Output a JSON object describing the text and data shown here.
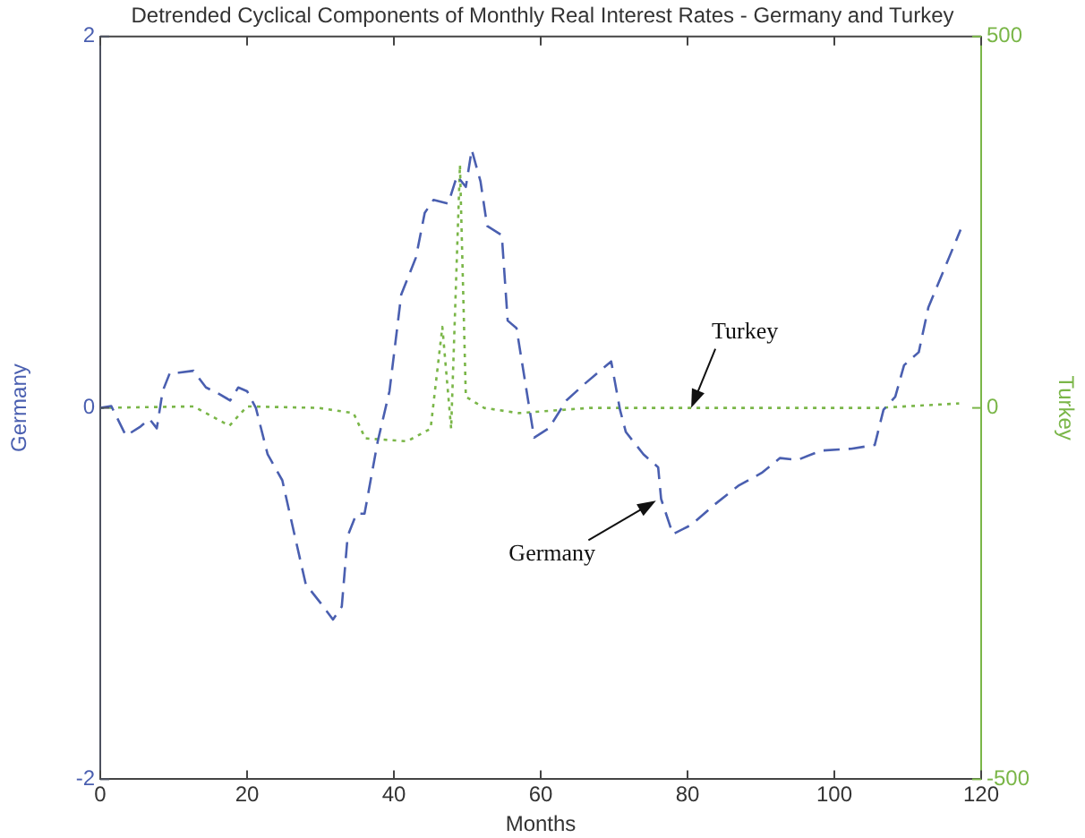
{
  "chart_data": {
    "type": "line",
    "title": "Detrended Cyclical Components of Monthly Real Interest Rates - Germany and Turkey",
    "xlabel": "Months",
    "ylabel": "Germany",
    "y2label": "Turkey",
    "series": [
      {
        "color": "#4a5fb0",
        "line_style": "dashed",
        "axis": "y",
        "x": [
          0,
          1.5,
          3.5,
          5.5,
          6.7,
          7.7,
          8.5,
          9.5,
          10.7,
          12.7,
          14.4,
          16,
          17.7,
          18.8,
          20,
          21.2,
          22.8,
          24.8,
          26.5,
          28,
          30,
          31.7,
          32.9,
          33.7,
          34.9,
          36,
          37.8,
          39.4,
          41,
          43,
          44.2,
          45.4,
          47.4,
          48.6,
          49.8,
          50.6,
          51.8,
          52.7,
          54.7,
          55.5,
          56.7,
          59.1,
          61.1,
          63.5,
          66,
          69.6,
          70.8,
          71.6,
          74,
          76,
          76.4,
          78,
          80.5,
          83.7,
          86.9,
          90.1,
          92.6,
          95,
          98.2,
          102.3,
          105.5,
          106.7,
          108.3,
          109.5,
          111.5,
          112.8,
          117.2
        ],
        "values": [
          0,
          0.01,
          -0.15,
          -0.1,
          -0.06,
          -0.11,
          0.09,
          0.19,
          0.19,
          0.2,
          0.11,
          0.08,
          0.04,
          0.11,
          0.09,
          0,
          -0.25,
          -0.39,
          -0.69,
          -0.95,
          -1.05,
          -1.14,
          -1.07,
          -0.69,
          -0.57,
          -0.57,
          -0.18,
          0.09,
          0.61,
          0.81,
          1.05,
          1.12,
          1.1,
          1.25,
          1.19,
          1.39,
          1.22,
          0.98,
          0.93,
          0.47,
          0.43,
          -0.16,
          -0.11,
          0.04,
          0.13,
          0.25,
          -0.01,
          -0.13,
          -0.25,
          -0.32,
          -0.49,
          -0.68,
          -0.63,
          -0.52,
          -0.42,
          -0.35,
          -0.27,
          -0.28,
          -0.23,
          -0.22,
          -0.2,
          -0.01,
          0.06,
          0.23,
          0.3,
          0.54,
          0.96
        ]
      },
      {
        "color": "#7ab648",
        "line_style": "dotted",
        "axis": "y2",
        "x": [
          0,
          12.7,
          17.6,
          20,
          29.7,
          34.5,
          36.1,
          41.8,
          45,
          46.6,
          47.8,
          49,
          49.8,
          52.3,
          57,
          66.7,
          80,
          106,
          117
        ],
        "values": [
          0,
          2,
          -24,
          2,
          0,
          -7,
          -41,
          -45,
          -28,
          109,
          -28,
          327,
          15,
          0,
          -7,
          0,
          0,
          0,
          6
        ]
      }
    ],
    "xlim": [
      0,
      120
    ],
    "xticks": [
      0,
      20,
      40,
      60,
      80,
      100,
      120
    ],
    "ylim": [
      -2,
      2
    ],
    "yticks": [
      -2,
      0,
      2
    ],
    "y2lim": [
      -500,
      500
    ],
    "y2ticks": [
      -500,
      0,
      500
    ],
    "grid": false,
    "legend": false,
    "marker": "none",
    "annotations": [
      {
        "text": "Turkey",
        "x": 80.5,
        "y": 0
      },
      {
        "text": "Germany",
        "x": 75.7,
        "y": -0.5
      }
    ]
  }
}
